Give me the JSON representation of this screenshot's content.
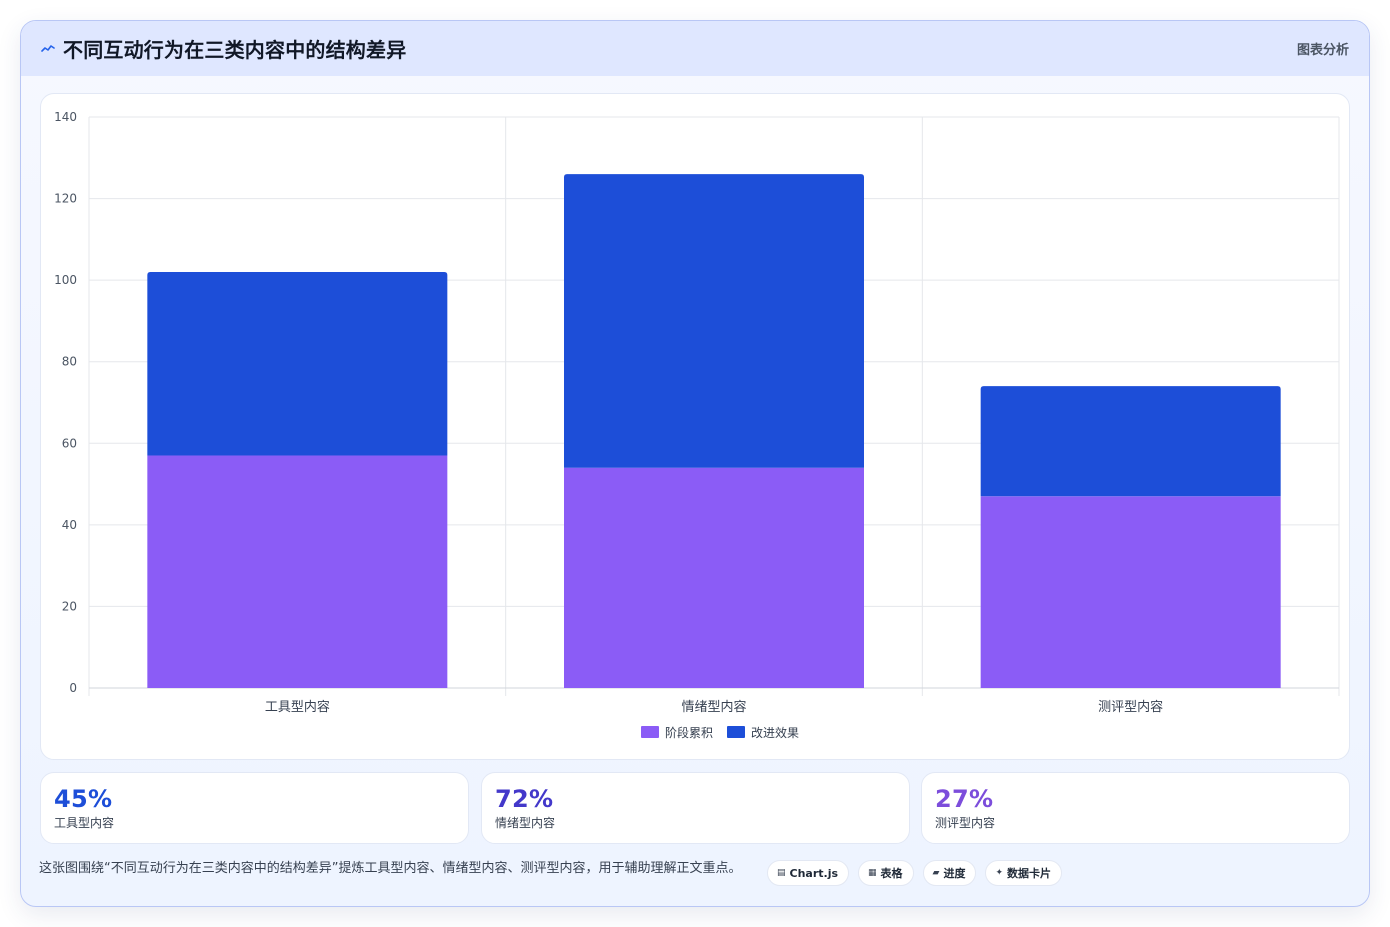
{
  "header": {
    "title": "不同互动行为在三类内容中的结构差异",
    "tag": "图表分析",
    "icon": "sparkline-icon"
  },
  "chart_data": {
    "type": "bar",
    "stacked": true,
    "categories": [
      "工具型内容",
      "情绪型内容",
      "测评型内容"
    ],
    "series": [
      {
        "name": "阶段累积",
        "values": [
          57,
          54,
          47
        ],
        "color": "#8b5cf6"
      },
      {
        "name": "改进效果",
        "values": [
          45,
          72,
          27
        ],
        "color": "#1d4ed8"
      }
    ],
    "ylim": [
      0,
      140
    ],
    "yticks": [
      0,
      20,
      40,
      60,
      80,
      100,
      120,
      140
    ],
    "grid": true,
    "legend_position": "bottom"
  },
  "stats": [
    {
      "value": "45%",
      "label": "工具型内容",
      "color": "#1d4ed8"
    },
    {
      "value": "72%",
      "label": "情绪型内容",
      "color": "#4338ca"
    },
    {
      "value": "27%",
      "label": "测评型内容",
      "color": "#7c4ddb"
    }
  ],
  "footer": {
    "description": "这张图围绕“不同互动行为在三类内容中的结构差异”提炼工具型内容、情绪型内容、测评型内容，用于辅助理解正文重点。",
    "pills": [
      {
        "icon": "▤",
        "icon_name": "chart-icon",
        "label": "Chart.js"
      },
      {
        "icon": "▦",
        "icon_name": "table-icon",
        "label": "表格"
      },
      {
        "icon": "▰",
        "icon_name": "progress-icon",
        "label": "进度"
      },
      {
        "icon": "✦",
        "icon_name": "sparkle-icon",
        "label": "数据卡片"
      }
    ]
  }
}
